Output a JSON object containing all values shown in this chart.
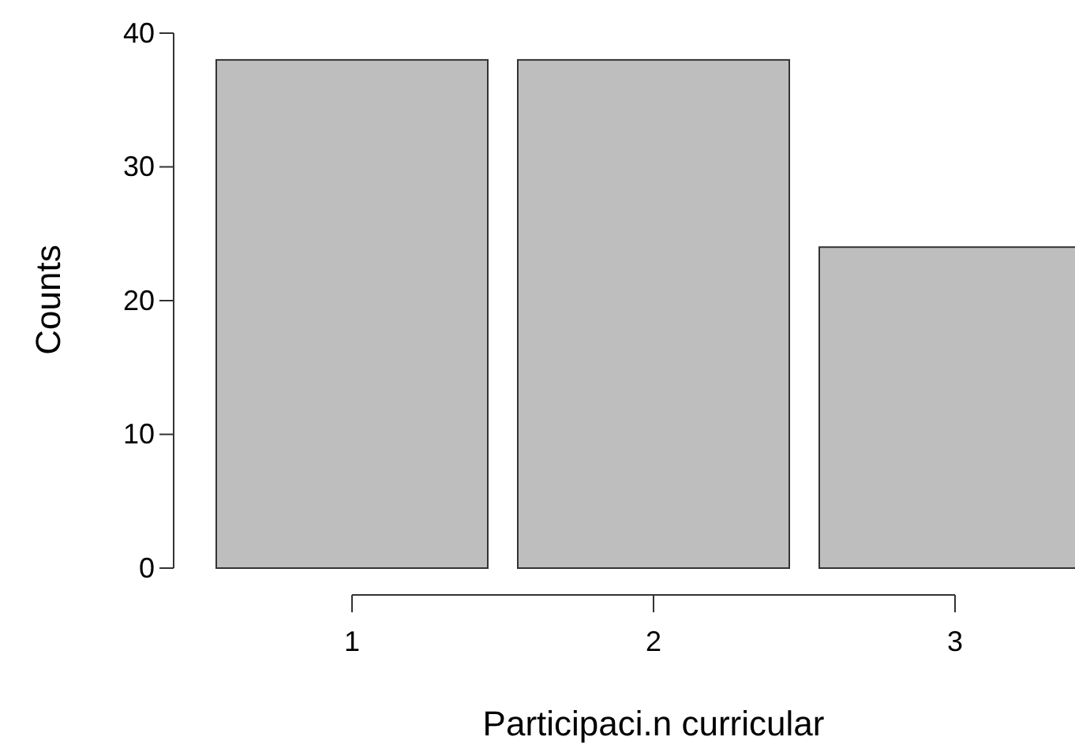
{
  "chart_data": {
    "type": "bar",
    "xlabel": "Participaci.n curricular",
    "ylabel": "Counts",
    "categories": [
      "1",
      "2",
      "3"
    ],
    "values": [
      38,
      38,
      24
    ],
    "color": "#bebebe",
    "ylim": [
      0,
      40
    ],
    "yticks": [
      0,
      10,
      20,
      30,
      40
    ]
  }
}
